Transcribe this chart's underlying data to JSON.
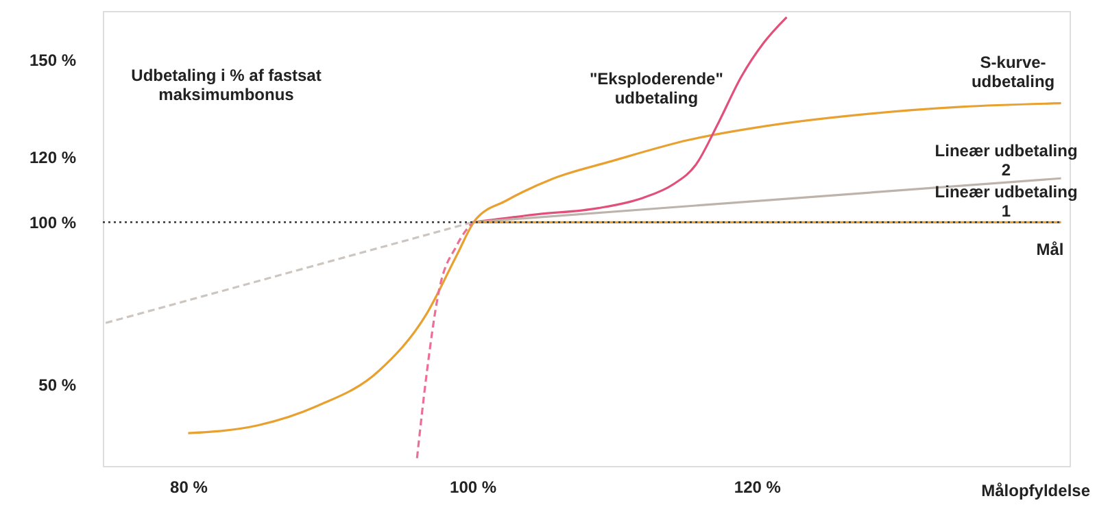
{
  "chart_data": {
    "type": "line",
    "xlabel": "Målopfyldelse",
    "ylabel": "Udbetaling i % af fastsat\nmaksimumbonus",
    "xlim": [
      74,
      142
    ],
    "ylim": [
      25,
      165
    ],
    "xticks": [
      {
        "value": 80,
        "label": "80 %"
      },
      {
        "value": 100,
        "label": "100 %"
      },
      {
        "value": 120,
        "label": "120 %"
      }
    ],
    "yticks": [
      {
        "value": 50,
        "label": "50 %"
      },
      {
        "value": 100,
        "label": "100 %"
      },
      {
        "value": 120,
        "label": "120 %"
      },
      {
        "value": 150,
        "label": "150 %"
      }
    ],
    "grid": false,
    "legend": false,
    "marker": "none",
    "series": [
      {
        "name": "S-kurve-\nudbetaling",
        "color": "#e8a030",
        "line_style": "solid",
        "x": [
          80,
          84.9,
          89.1,
          93.4,
          96.8,
          98.9,
          100.2,
          102.4,
          105.6,
          109.8,
          115.2,
          120.5,
          128.0,
          134.4,
          141.4
        ],
        "values": [
          35.1,
          37.5,
          43.5,
          54.2,
          72.0,
          89.9,
          100.7,
          106.7,
          113.3,
          118.8,
          125.3,
          129.5,
          133.4,
          135.5,
          136.6
        ]
      },
      {
        "color": "#ec6f96",
        "line_style": "dashed",
        "x": [
          96.1,
          96.8,
          97.6,
          98.9,
          100
        ],
        "values": [
          27.4,
          54.2,
          78.0,
          92.9,
          100
        ]
      },
      {
        "name": "\"Eksploderende\"\nudbetaling",
        "color": "#e0507a",
        "line_style": "solid",
        "x": [
          100,
          104.5,
          108.8,
          112.0,
          114.1,
          115.7,
          117.3,
          118.9,
          120.5,
          122.1
        ],
        "values": [
          100,
          102.4,
          104.3,
          107.5,
          111.6,
          117.6,
          130.6,
          144.7,
          155.3,
          163.1
        ]
      },
      {
        "color": "#cdc6c0",
        "line_style": "dashed",
        "x": [
          74.2,
          100
        ],
        "values": [
          69.0,
          100
        ]
      },
      {
        "name": "Lineær udbetaling\n2",
        "color": "#bdb3ab",
        "line_style": "solid",
        "x": [
          100,
          141.4
        ],
        "values": [
          100,
          113.5
        ]
      },
      {
        "name": "Lineær udbetaling\n1",
        "color": "#e8a030",
        "line_style": "solid",
        "x": [
          100,
          141.4
        ],
        "values": [
          100,
          100
        ]
      }
    ],
    "ref_lines": [
      {
        "axis": "y",
        "value": 100,
        "label": "Mål",
        "color": "#333333",
        "line_style": "dotted"
      }
    ]
  }
}
